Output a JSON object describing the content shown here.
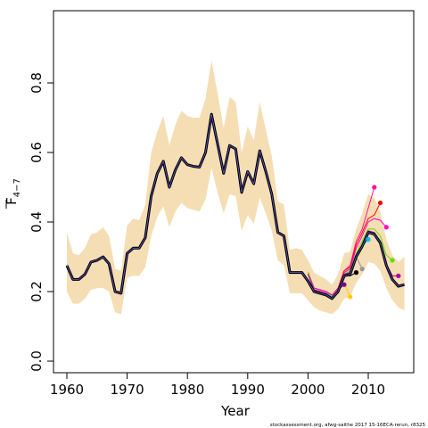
{
  "chart_data": {
    "type": "line",
    "xlabel": "Year",
    "ylabel": "F",
    "ylabel_subscript": "4−7",
    "footer": "stockassessment.org,  afwg-saithe  2017  15-16ECA-rerun,  r8325",
    "xlim": [
      1960,
      2016
    ],
    "ylim": [
      0.0,
      0.85
    ],
    "x_ticks": [
      1960,
      1970,
      1980,
      1990,
      2000,
      2010
    ],
    "y_ticks": [
      0.0,
      0.2,
      0.4,
      0.6,
      0.8
    ],
    "y_tick_labels": [
      "0.0",
      "0.2",
      "0.4",
      "0.6",
      "0.8"
    ],
    "band_color": "#f5deb3",
    "years": [
      1960,
      1961,
      1962,
      1963,
      1964,
      1965,
      1966,
      1967,
      1968,
      1969,
      1970,
      1971,
      1972,
      1973,
      1974,
      1975,
      1976,
      1977,
      1978,
      1979,
      1980,
      1981,
      1982,
      1983,
      1984,
      1985,
      1986,
      1987,
      1988,
      1989,
      1990,
      1991,
      1992,
      1993,
      1994,
      1995,
      1996,
      1997,
      1998,
      1999,
      2000,
      2001,
      2002,
      2003,
      2004,
      2005,
      2006,
      2007,
      2008,
      2009,
      2010,
      2011,
      2012,
      2013,
      2014,
      2015,
      2016
    ],
    "estimate": [
      0.275,
      0.235,
      0.235,
      0.25,
      0.285,
      0.29,
      0.3,
      0.28,
      0.2,
      0.195,
      0.31,
      0.325,
      0.325,
      0.355,
      0.475,
      0.54,
      0.575,
      0.5,
      0.55,
      0.585,
      0.565,
      0.56,
      0.558,
      0.6,
      0.71,
      0.625,
      0.54,
      0.62,
      0.61,
      0.485,
      0.545,
      0.51,
      0.605,
      0.545,
      0.48,
      0.37,
      0.36,
      0.255,
      0.255,
      0.255,
      0.23,
      0.2,
      0.195,
      0.19,
      0.18,
      0.2,
      0.245,
      0.25,
      0.3,
      0.33,
      0.37,
      0.365,
      0.34,
      0.275,
      0.235,
      0.215,
      0.22
    ],
    "upper": [
      0.37,
      0.31,
      0.305,
      0.325,
      0.365,
      0.37,
      0.385,
      0.36,
      0.265,
      0.26,
      0.39,
      0.41,
      0.405,
      0.45,
      0.6,
      0.66,
      0.705,
      0.62,
      0.68,
      0.72,
      0.705,
      0.7,
      0.7,
      0.755,
      0.865,
      0.77,
      0.67,
      0.76,
      0.745,
      0.6,
      0.675,
      0.635,
      0.745,
      0.665,
      0.59,
      0.46,
      0.45,
      0.32,
      0.325,
      0.32,
      0.29,
      0.255,
      0.245,
      0.235,
      0.22,
      0.25,
      0.31,
      0.315,
      0.38,
      0.425,
      0.48,
      0.47,
      0.43,
      0.35,
      0.305,
      0.285,
      0.3
    ],
    "lower": [
      0.2,
      0.165,
      0.165,
      0.18,
      0.205,
      0.21,
      0.21,
      0.2,
      0.14,
      0.135,
      0.24,
      0.245,
      0.245,
      0.27,
      0.36,
      0.415,
      0.445,
      0.385,
      0.43,
      0.455,
      0.44,
      0.435,
      0.43,
      0.465,
      0.555,
      0.485,
      0.425,
      0.48,
      0.475,
      0.375,
      0.42,
      0.395,
      0.47,
      0.425,
      0.375,
      0.29,
      0.275,
      0.195,
      0.195,
      0.195,
      0.175,
      0.155,
      0.145,
      0.14,
      0.135,
      0.15,
      0.18,
      0.185,
      0.225,
      0.25,
      0.285,
      0.28,
      0.26,
      0.21,
      0.175,
      0.155,
      0.145
    ],
    "retro_peels": [
      {
        "color": "#7b0099",
        "x": [
          2000,
          2001,
          2002,
          2003,
          2004,
          2005,
          2006
        ],
        "y": [
          0.235,
          0.205,
          0.2,
          0.195,
          0.185,
          0.205,
          0.22
        ]
      },
      {
        "color": "#ffcc00",
        "x": [
          2000,
          2001,
          2002,
          2003,
          2004,
          2005,
          2006,
          2007
        ],
        "y": [
          0.25,
          0.21,
          0.205,
          0.2,
          0.19,
          0.205,
          0.225,
          0.185
        ]
      },
      {
        "color": "#000000",
        "x": [
          2000,
          2001,
          2002,
          2003,
          2004,
          2005,
          2006,
          2007,
          2008
        ],
        "y": [
          0.25,
          0.205,
          0.2,
          0.195,
          0.18,
          0.2,
          0.245,
          0.245,
          0.255
        ]
      },
      {
        "color": "#999999",
        "x": [
          2000,
          2001,
          2002,
          2003,
          2004,
          2005,
          2006,
          2007,
          2008,
          2009
        ],
        "y": [
          0.25,
          0.205,
          0.2,
          0.195,
          0.18,
          0.2,
          0.25,
          0.26,
          0.3,
          0.265
        ]
      },
      {
        "color": "#00bfff",
        "x": [
          2000,
          2001,
          2002,
          2003,
          2004,
          2005,
          2006,
          2007,
          2008,
          2009,
          2010
        ],
        "y": [
          0.255,
          0.21,
          0.205,
          0.2,
          0.185,
          0.205,
          0.255,
          0.265,
          0.31,
          0.33,
          0.35
        ]
      },
      {
        "color": "#ff1493",
        "x": [
          2000,
          2001,
          2002,
          2003,
          2004,
          2005,
          2006,
          2007,
          2008,
          2009,
          2010,
          2011
        ],
        "y": [
          0.255,
          0.21,
          0.205,
          0.2,
          0.19,
          0.21,
          0.26,
          0.275,
          0.345,
          0.38,
          0.44,
          0.5
        ]
      },
      {
        "color": "#ff0000",
        "x": [
          2000,
          2001,
          2002,
          2003,
          2004,
          2005,
          2006,
          2007,
          2008,
          2009,
          2010,
          2011,
          2012
        ],
        "y": [
          0.255,
          0.21,
          0.205,
          0.2,
          0.19,
          0.21,
          0.26,
          0.27,
          0.335,
          0.37,
          0.41,
          0.42,
          0.455
        ]
      },
      {
        "color": "#ff00cc",
        "x": [
          2000,
          2001,
          2002,
          2003,
          2004,
          2005,
          2006,
          2007,
          2008,
          2009,
          2010,
          2011,
          2012,
          2013
        ],
        "y": [
          0.255,
          0.21,
          0.205,
          0.2,
          0.19,
          0.21,
          0.255,
          0.265,
          0.325,
          0.36,
          0.4,
          0.41,
          0.405,
          0.385
        ]
      },
      {
        "color": "#66dd00",
        "x": [
          2000,
          2001,
          2002,
          2003,
          2004,
          2005,
          2006,
          2007,
          2008,
          2009,
          2010,
          2011,
          2012,
          2013,
          2014
        ],
        "y": [
          0.255,
          0.205,
          0.2,
          0.195,
          0.185,
          0.205,
          0.25,
          0.26,
          0.31,
          0.345,
          0.38,
          0.38,
          0.36,
          0.305,
          0.29
        ]
      },
      {
        "color": "#aa00aa",
        "x": [
          2000,
          2001,
          2002,
          2003,
          2004,
          2005,
          2006,
          2007,
          2008,
          2009,
          2010,
          2011,
          2012,
          2013,
          2014,
          2015
        ],
        "y": [
          0.25,
          0.205,
          0.2,
          0.195,
          0.18,
          0.2,
          0.25,
          0.255,
          0.305,
          0.335,
          0.375,
          0.37,
          0.345,
          0.28,
          0.245,
          0.245
        ]
      }
    ]
  }
}
